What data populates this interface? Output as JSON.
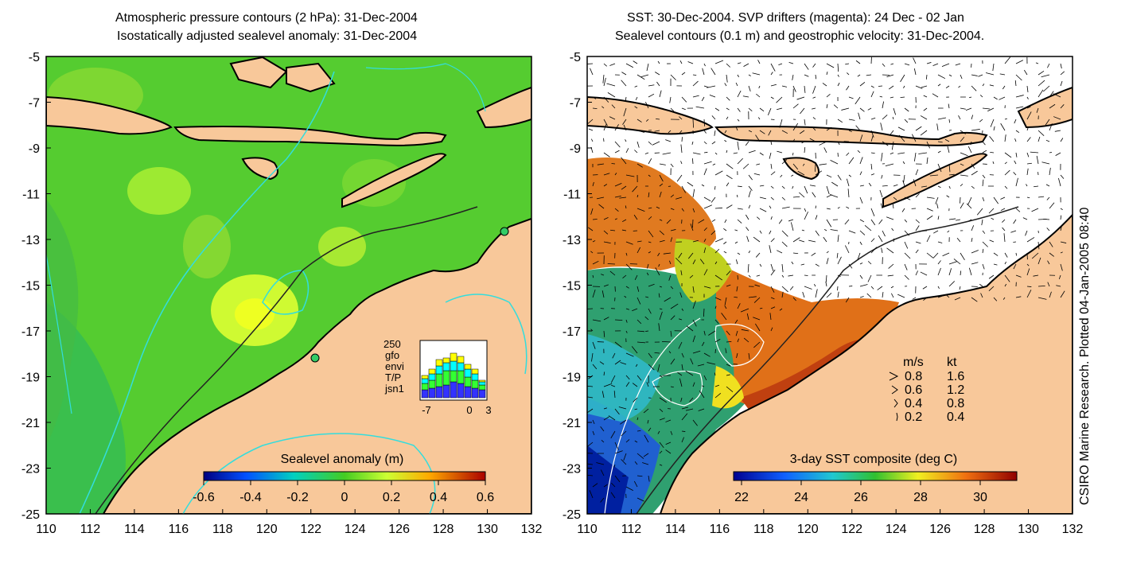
{
  "left_panel": {
    "title_line1": "Atmospheric pressure contours (2 hPa): 31-Dec-2004",
    "title_line2": "Isostatically adjusted sealevel anomaly: 31-Dec-2004",
    "colorbar": {
      "title": "Sealevel anomaly (m)",
      "ticks": [
        "-0.6",
        "-0.4",
        "-0.2",
        "0",
        "0.2",
        "0.4",
        "0.6"
      ]
    },
    "inset": {
      "ymax_label": "250",
      "legend": [
        "gfo",
        "envi",
        "T/P",
        "jsn1"
      ],
      "legend_colors": [
        "#ffff00",
        "#00ffff",
        "#33ff33",
        "#3333ff"
      ],
      "x_ticks": [
        "-7",
        "0",
        "3"
      ]
    }
  },
  "right_panel": {
    "title_line1": "SST: 30-Dec-2004. SVP drifters (magenta): 24 Dec - 02 Jan",
    "title_line2": "Sealevel contours (0.1 m) and geostrophic velocity: 31-Dec-2004.",
    "colorbar": {
      "title": "3-day SST composite (deg C)",
      "ticks": [
        "22",
        "24",
        "26",
        "28",
        "30"
      ]
    },
    "velocity_legend": {
      "header_ms": "m/s",
      "header_kt": "kt",
      "rows": [
        {
          "ms": "0.8",
          "kt": "1.6"
        },
        {
          "ms": "0.6",
          "kt": "1.2"
        },
        {
          "ms": "0.4",
          "kt": "0.8"
        },
        {
          "ms": "0.2",
          "kt": "0.4"
        }
      ]
    }
  },
  "axes": {
    "lat_ticks": [
      "-5",
      "-7",
      "-9",
      "-11",
      "-13",
      "-15",
      "-17",
      "-19",
      "-21",
      "-23",
      "-25"
    ],
    "lon_ticks": [
      "110",
      "112",
      "114",
      "116",
      "118",
      "120",
      "122",
      "124",
      "126",
      "128",
      "130",
      "132"
    ]
  },
  "side_note": "CSIRO Marine Research. Plotted 04-Jan-2005 08:40",
  "colors": {
    "land": "#f8c89a",
    "ocean_green": "#55cc33",
    "contour_cyan": "#33dddd",
    "coastline": "#000000"
  }
}
